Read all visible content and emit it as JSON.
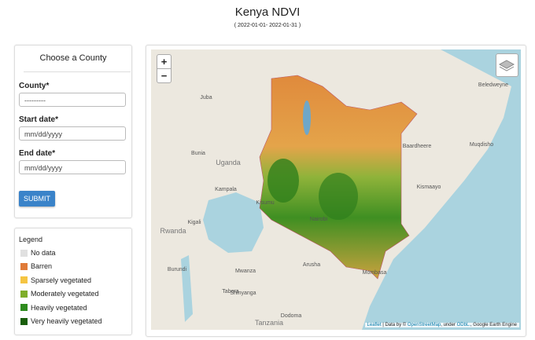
{
  "header": {
    "title": "Kenya NDVI",
    "subtitle": "( 2022-01-01- 2022-01-31 )"
  },
  "form": {
    "heading": "Choose a County",
    "county_label": "County*",
    "county_placeholder": "---------",
    "start_label": "Start date*",
    "start_placeholder": "mm/dd/yyyy",
    "end_label": "End date*",
    "end_placeholder": "mm/dd/yyyy",
    "submit": "SUBMIT"
  },
  "legend": {
    "title": "Legend",
    "items": [
      {
        "label": "No data",
        "color": "#e0e0e0"
      },
      {
        "label": "Barren",
        "color": "#e07b39"
      },
      {
        "label": "Sparsely vegetated",
        "color": "#f5c542"
      },
      {
        "label": "Moderately vegetated",
        "color": "#7fae2a"
      },
      {
        "label": "Heavily vegetated",
        "color": "#2e8b1e"
      },
      {
        "label": "Very heavily vegetated",
        "color": "#1a5e0a"
      }
    ]
  },
  "map": {
    "zoom_in": "+",
    "zoom_out": "−",
    "labels": [
      "Juba",
      "Uganda",
      "Kampala",
      "Bunia",
      "Kigali",
      "Rwanda",
      "Burundi",
      "Mwanza",
      "Shinyanga",
      "Tabora",
      "Dodoma",
      "Tanzania",
      "Arusha",
      "Nairobi",
      "Mombasa",
      "Kismaayo",
      "Baardheere",
      "Muqdisho",
      "Beledweyne",
      "Kisumu"
    ],
    "attribution": [
      "Leaflet",
      " | Data by © ",
      "OpenStreetMap",
      ", under ",
      "ODbL.",
      ", Google Earth Engine"
    ]
  }
}
